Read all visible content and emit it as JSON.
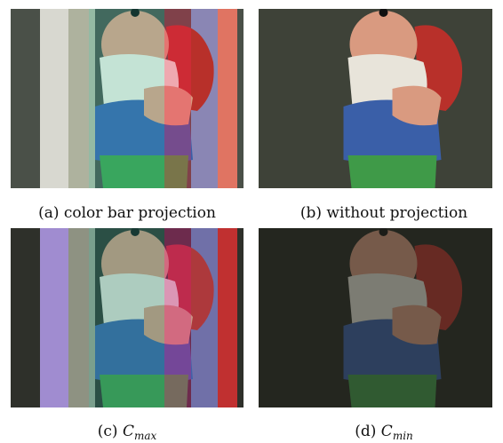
{
  "figures": [
    {
      "caption": "(a) color bar projection"
    },
    {
      "caption": "(b) without projection"
    },
    {
      "label": "(c)",
      "symbol": "C",
      "subscript": "max"
    },
    {
      "label": "(d)",
      "symbol": "C",
      "subscript": "min"
    }
  ]
}
